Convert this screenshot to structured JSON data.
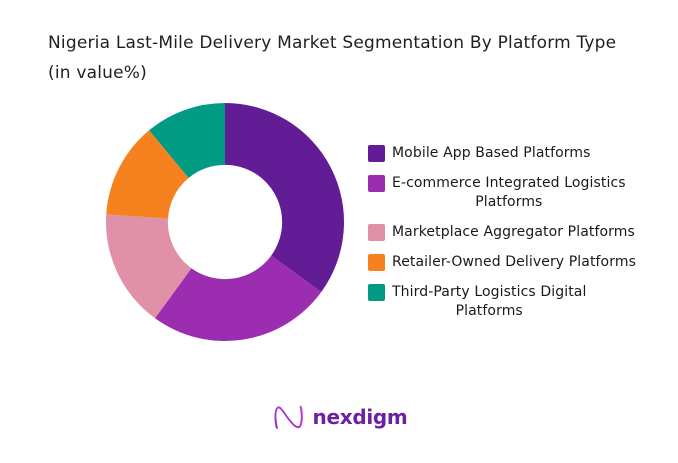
{
  "title": {
    "text": "Nigeria Last-Mile Delivery Market Segmentation By Platform Type (in value%)"
  },
  "chart_data": {
    "type": "pie",
    "subtype": "donut",
    "title": "Nigeria Last-Mile Delivery Market Segmentation By Platform Type (in value%)",
    "start_angle_deg_from_top": 0,
    "direction": "clockwise",
    "inner_radius_ratio": 0.48,
    "labels_shown": false,
    "legend_position": "right",
    "values_are_percent_estimated_from_angles": true,
    "series": [
      {
        "name": "Mobile App Based Platforms",
        "value": 35,
        "color": "#611C96"
      },
      {
        "name": "E-commerce Integrated Logistics Platforms",
        "value": 25,
        "color": "#9C2DB0"
      },
      {
        "name": "Marketplace Aggregator Platforms",
        "value": 16,
        "color": "#E091A8"
      },
      {
        "name": "Retailer-Owned Delivery Platforms",
        "value": 13,
        "color": "#F5821F"
      },
      {
        "name": "Third-Party Logistics Digital Platforms",
        "value": 11,
        "color": "#009B82"
      }
    ]
  },
  "legend": {
    "items": [
      {
        "color": "#611C96",
        "lines": [
          "Mobile App Based Platforms"
        ]
      },
      {
        "color": "#9C2DB0",
        "lines": [
          "E-commerce Integrated Logistics",
          "Platforms"
        ]
      },
      {
        "color": "#E091A8",
        "lines": [
          "Marketplace Aggregator Platforms"
        ]
      },
      {
        "color": "#F5821F",
        "lines": [
          "Retailer-Owned Delivery Platforms"
        ]
      },
      {
        "color": "#009B82",
        "lines": [
          "Third-Party Logistics Digital",
          "Platforms"
        ]
      }
    ]
  },
  "logo": {
    "text": "nexdigm",
    "icon": "nexdigm-n-icon",
    "text_color": "#6D21A0",
    "icon_gradient": [
      "#8B2FC9",
      "#C93BE0"
    ]
  }
}
